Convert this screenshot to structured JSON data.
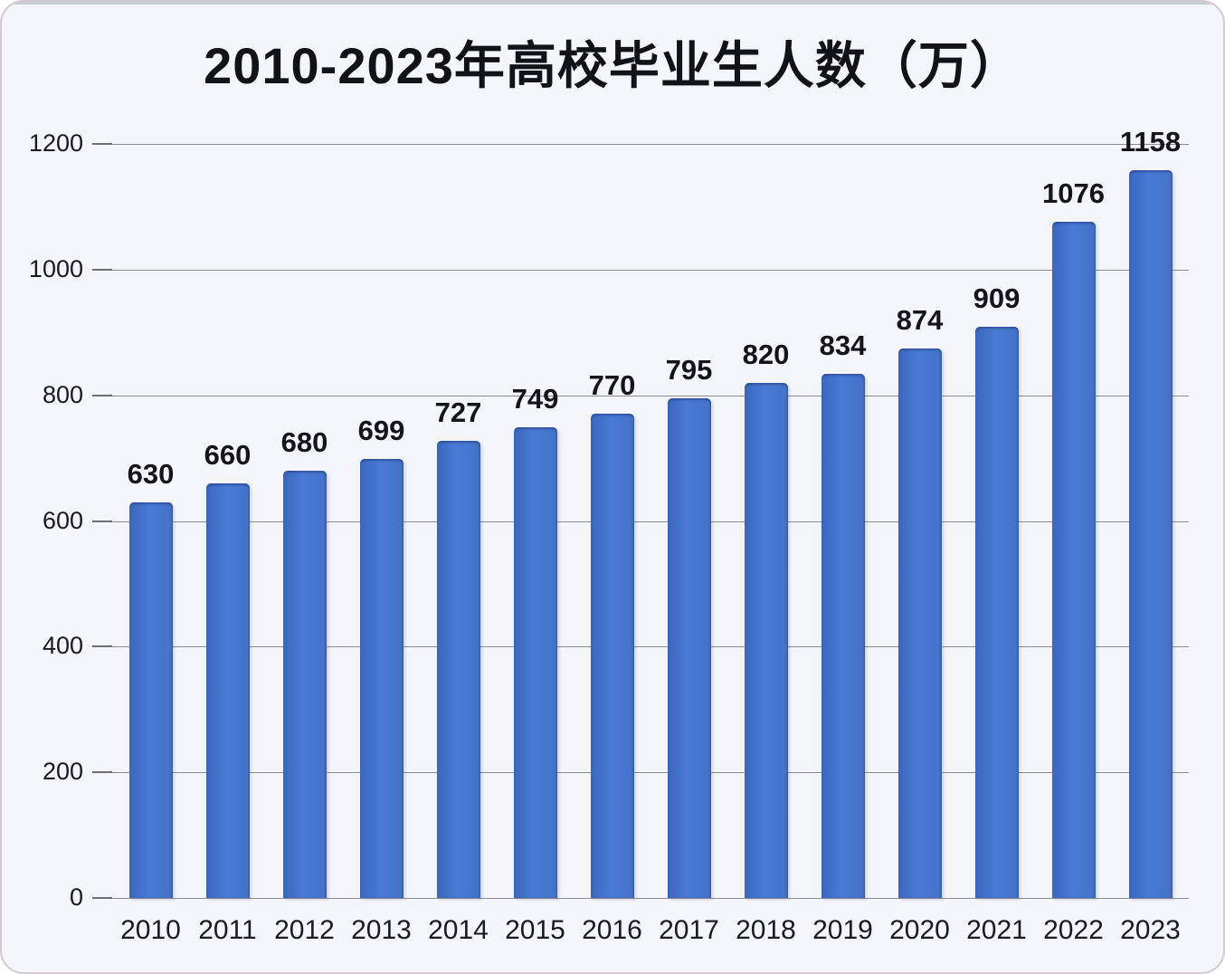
{
  "page": {
    "background_color": "#f4f5fa",
    "frame_border_color": "#d3c9d1"
  },
  "chart_data": {
    "type": "bar",
    "title": "2010-2023年高校毕业生人数（万）",
    "categories": [
      "2010",
      "2011",
      "2012",
      "2013",
      "2014",
      "2015",
      "2016",
      "2017",
      "2018",
      "2019",
      "2020",
      "2021",
      "2022",
      "2023"
    ],
    "values": [
      630,
      660,
      680,
      699,
      727,
      749,
      770,
      795,
      820,
      834,
      874,
      909,
      1076,
      1158
    ],
    "xlabel": "",
    "ylabel": "",
    "ylim": [
      0,
      1200
    ],
    "yticks": [
      0,
      200,
      400,
      600,
      800,
      1000,
      1200
    ],
    "grid": true,
    "legend": false,
    "data_labels": true,
    "bar_color": "#4472C4",
    "gridline_color": "#8b8b94",
    "text_color": "#14141d"
  }
}
